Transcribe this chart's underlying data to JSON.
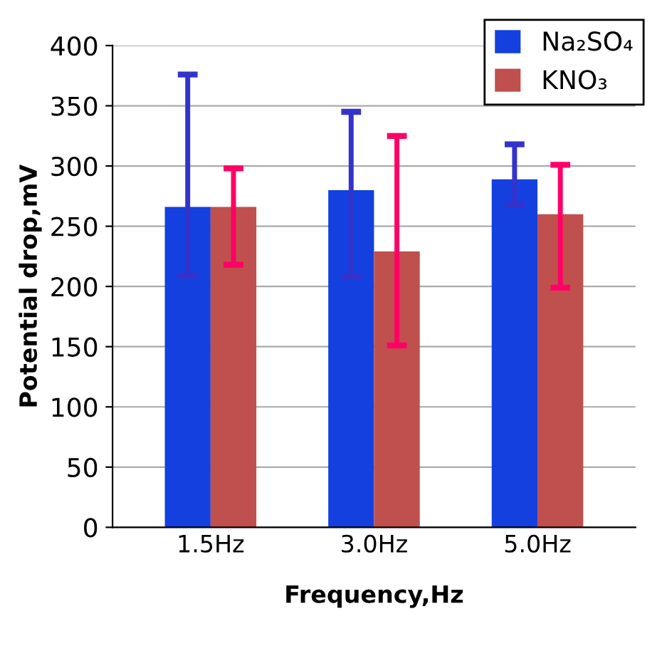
{
  "chart_data": {
    "type": "bar",
    "xlabel": "Frequency,Hz",
    "ylabel": "Potential drop,mV",
    "categories": [
      "1.5Hz",
      "3.0Hz",
      "5.0Hz"
    ],
    "series": [
      {
        "name": "Na₂SO₄",
        "color": "#1440e0",
        "values": [
          266,
          280,
          289
        ],
        "errors": [
          [
            209,
            376
          ],
          [
            208,
            345
          ],
          [
            268,
            318
          ]
        ]
      },
      {
        "name": "KNO₃",
        "color": "#c0504d",
        "values": [
          266,
          229,
          260
        ],
        "errors": [
          [
            218,
            298
          ],
          [
            151,
            325
          ],
          [
            199,
            301
          ]
        ]
      }
    ],
    "ylim": [
      0,
      400
    ],
    "yticks": [
      0,
      50,
      100,
      150,
      200,
      250,
      300,
      350,
      400
    ],
    "grid": "y",
    "legend": "top right"
  }
}
